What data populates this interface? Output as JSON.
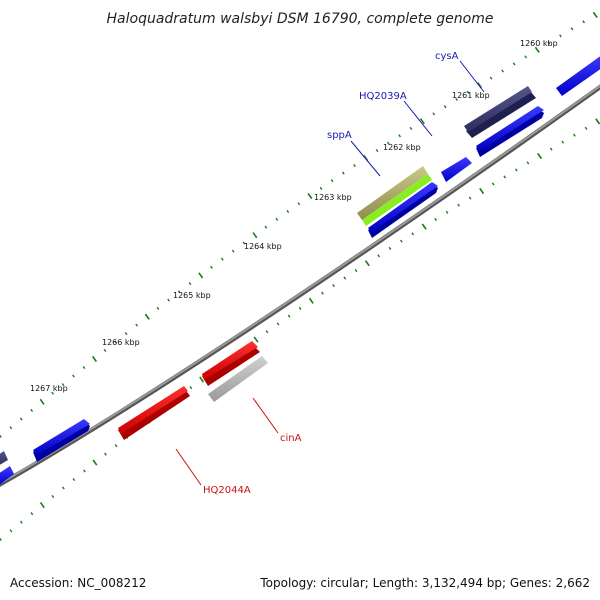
{
  "title": "Haloquadratum walsbyi DSM 16790, complete genome",
  "footer": {
    "accession": "Accession: NC_008212",
    "summary": "Topology: circular; Length: 3,132,494 bp; Genes: 2,662"
  },
  "ticks": [
    "1260 kbp",
    "1261 kbp",
    "1262 kbp",
    "1263 kbp",
    "1264 kbp",
    "1265 kbp",
    "1266 kbp",
    "1267 kbp"
  ],
  "genes": [
    {
      "name": "cysA",
      "strand": "forward",
      "color": "#3a3a7a"
    },
    {
      "name": "HQ2039A",
      "strand": "forward",
      "color": "#1a1aff"
    },
    {
      "name": "sppA",
      "strand": "forward",
      "color": "#a8a860"
    },
    {
      "name": "cinA",
      "strand": "reverse",
      "color": "#b0b0b0"
    },
    {
      "name": "HQ2044A",
      "strand": "reverse",
      "color": "#ee1111"
    }
  ],
  "colors": {
    "forward_label": "#1a1ab0",
    "reverse_label": "#cc1111",
    "backbone": "#808080",
    "tick_dots": "#1a7a1a",
    "cds_blue": "#1a1aff",
    "green_feature": "#88ee22"
  }
}
